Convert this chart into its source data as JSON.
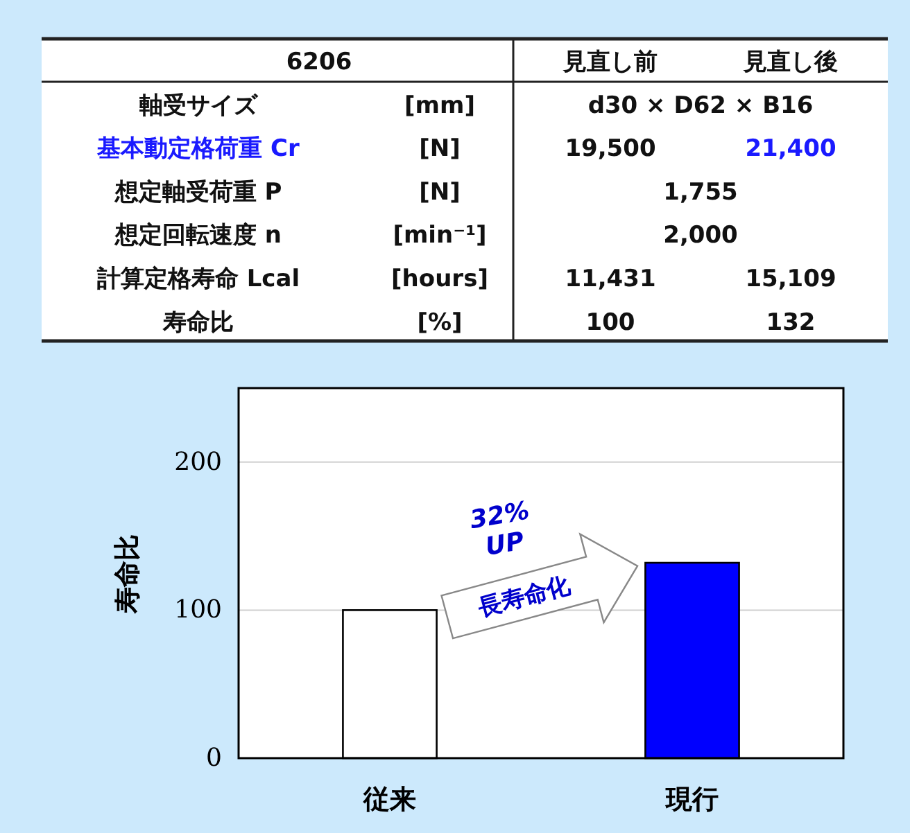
{
  "chart_data": [
    {
      "type": "other",
      "categories": [
        "6206",
        null,
        "見直し前",
        "見直し後"
      ],
      "cell_labels": [
        [
          "軸受サイズ",
          "[mm]",
          "d30 × D62 × B16",
          null
        ],
        [
          "基本動定格荷重 Cr",
          "[N]",
          "19,500",
          "21,400"
        ],
        [
          "想定軸受荷重 P",
          "[N]",
          "1,755",
          null
        ],
        [
          "想定回転速度 n",
          "[min⁻¹]",
          "2,000",
          null
        ],
        [
          "計算定格寿命 Lcal",
          "[hours]",
          "11,431",
          "15,109"
        ],
        [
          "寿命比",
          "[%]",
          "100",
          "132"
        ]
      ],
      "colors": [
        [
          null,
          null,
          null,
          null
        ],
        [
          "#1a1aff",
          null,
          null,
          "#1a1aff"
        ],
        [
          null,
          null,
          null,
          null
        ],
        [
          null,
          null,
          null,
          null
        ],
        [
          null,
          null,
          null,
          null
        ],
        [
          null,
          null,
          null,
          null
        ]
      ]
    },
    {
      "type": "bar",
      "categories": [
        "従来",
        "現行"
      ],
      "values": [
        100,
        132
      ],
      "colors": [
        "#ffffff",
        "#0000ff"
      ],
      "ylabel": "寿命比",
      "ylim": [
        0,
        250
      ],
      "yticks": [
        0,
        100,
        200
      ],
      "grid": "y",
      "annotations": [
        "32%\nUP",
        "長寿命化"
      ]
    }
  ]
}
